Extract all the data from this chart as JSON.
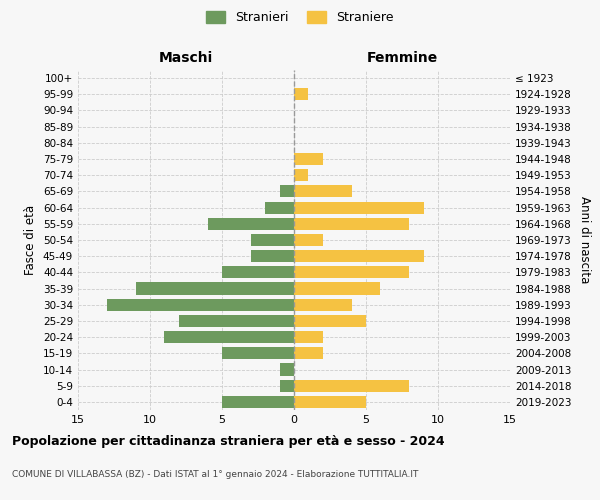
{
  "age_groups": [
    "0-4",
    "5-9",
    "10-14",
    "15-19",
    "20-24",
    "25-29",
    "30-34",
    "35-39",
    "40-44",
    "45-49",
    "50-54",
    "55-59",
    "60-64",
    "65-69",
    "70-74",
    "75-79",
    "80-84",
    "85-89",
    "90-94",
    "95-99",
    "100+"
  ],
  "birth_years": [
    "2019-2023",
    "2014-2018",
    "2009-2013",
    "2004-2008",
    "1999-2003",
    "1994-1998",
    "1989-1993",
    "1984-1988",
    "1979-1983",
    "1974-1978",
    "1969-1973",
    "1964-1968",
    "1959-1963",
    "1954-1958",
    "1949-1953",
    "1944-1948",
    "1939-1943",
    "1934-1938",
    "1929-1933",
    "1924-1928",
    "≤ 1923"
  ],
  "maschi": [
    5,
    1,
    1,
    5,
    9,
    8,
    13,
    11,
    5,
    3,
    3,
    6,
    2,
    1,
    0,
    0,
    0,
    0,
    0,
    0,
    0
  ],
  "femmine": [
    5,
    8,
    0,
    2,
    2,
    5,
    4,
    6,
    8,
    9,
    2,
    8,
    9,
    4,
    1,
    2,
    0,
    0,
    0,
    1,
    0
  ],
  "maschi_color": "#6d9a5e",
  "femmine_color": "#f5c242",
  "background_color": "#f7f7f7",
  "grid_color": "#cccccc",
  "title": "Popolazione per cittadinanza straniera per età e sesso - 2024",
  "subtitle": "COMUNE DI VILLABASSA (BZ) - Dati ISTAT al 1° gennaio 2024 - Elaborazione TUTTITALIA.IT",
  "xlabel_left": "Maschi",
  "xlabel_right": "Femmine",
  "ylabel": "Fasce di età",
  "ylabel_right": "Anni di nascita",
  "legend_stranieri": "Stranieri",
  "legend_straniere": "Straniere",
  "xlim": 15,
  "bar_height": 0.75
}
